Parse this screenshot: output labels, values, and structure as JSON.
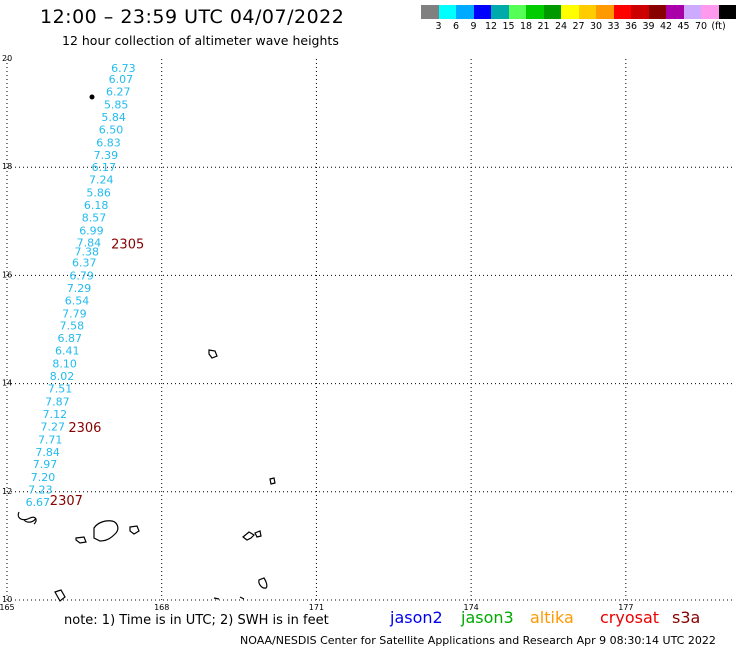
{
  "header": {
    "title": "12:00 – 23:59 UTC 04/07/2022",
    "subtitle": "12 hour collection of altimeter wave heights"
  },
  "color_scale": {
    "colors": [
      "#808080",
      "#00ffff",
      "#00aaff",
      "#0000ff",
      "#00aaaa",
      "#55ff55",
      "#00cc00",
      "#009900",
      "#ffff00",
      "#ffcc00",
      "#ff9900",
      "#ff0000",
      "#cc0000",
      "#880000",
      "#aa00aa",
      "#ccaaff",
      "#ff99ee",
      "#000000"
    ],
    "labels": [
      "3",
      "6",
      "9",
      "12",
      "15",
      "18",
      "21",
      "24",
      "27",
      "30",
      "33",
      "36",
      "39",
      "42",
      "45",
      "70",
      "(ft)"
    ]
  },
  "map": {
    "lon_ticks": [
      "165",
      "168",
      "171",
      "174",
      "177"
    ],
    "lat_ticks": [
      "20",
      "18",
      "16",
      "14",
      "12",
      "10"
    ],
    "wave_color": "#22bbee",
    "track_label_color": "#880000",
    "wave_heights": [
      {
        "v": "6.73",
        "lon": 167.02,
        "lat": 19.83
      },
      {
        "v": "6.07",
        "lon": 166.97,
        "lat": 19.63
      },
      {
        "v": "6.27",
        "lon": 166.92,
        "lat": 19.4
      },
      {
        "v": "5.85",
        "lon": 166.88,
        "lat": 19.16
      },
      {
        "v": "5.84",
        "lon": 166.83,
        "lat": 18.93
      },
      {
        "v": "6.50",
        "lon": 166.78,
        "lat": 18.7
      },
      {
        "v": "6.83",
        "lon": 166.73,
        "lat": 18.46
      },
      {
        "v": "7.39",
        "lon": 166.68,
        "lat": 18.23
      },
      {
        "v": "6.17",
        "lon": 166.64,
        "lat": 18.0
      },
      {
        "v": "7.24",
        "lon": 166.59,
        "lat": 17.77
      },
      {
        "v": "5.86",
        "lon": 166.54,
        "lat": 17.53
      },
      {
        "v": "6.18",
        "lon": 166.49,
        "lat": 17.3
      },
      {
        "v": "8.57",
        "lon": 166.45,
        "lat": 17.07
      },
      {
        "v": "6.99",
        "lon": 166.4,
        "lat": 16.83
      },
      {
        "v": "7.84",
        "lon": 166.35,
        "lat": 16.61
      },
      {
        "v": "7.38",
        "lon": 166.31,
        "lat": 16.44
      },
      {
        "v": "6.37",
        "lon": 166.26,
        "lat": 16.24
      },
      {
        "v": "6.79",
        "lon": 166.21,
        "lat": 16.0
      },
      {
        "v": "7.29",
        "lon": 166.16,
        "lat": 15.77
      },
      {
        "v": "6.54",
        "lon": 166.12,
        "lat": 15.54
      },
      {
        "v": "7.79",
        "lon": 166.07,
        "lat": 15.3
      },
      {
        "v": "7.58",
        "lon": 166.02,
        "lat": 15.07
      },
      {
        "v": "6.87",
        "lon": 165.98,
        "lat": 14.84
      },
      {
        "v": "6.41",
        "lon": 165.93,
        "lat": 14.61
      },
      {
        "v": "8.10",
        "lon": 165.88,
        "lat": 14.37
      },
      {
        "v": "8.02",
        "lon": 165.83,
        "lat": 14.14
      },
      {
        "v": "7.51",
        "lon": 165.79,
        "lat": 13.91
      },
      {
        "v": "7.87",
        "lon": 165.74,
        "lat": 13.67
      },
      {
        "v": "7.12",
        "lon": 165.69,
        "lat": 13.44
      },
      {
        "v": "7.27",
        "lon": 165.65,
        "lat": 13.21
      },
      {
        "v": "7.71",
        "lon": 165.6,
        "lat": 12.97
      },
      {
        "v": "7.84",
        "lon": 165.55,
        "lat": 12.74
      },
      {
        "v": "7.97",
        "lon": 165.5,
        "lat": 12.51
      },
      {
        "v": "7.20",
        "lon": 165.46,
        "lat": 12.27
      },
      {
        "v": "7.23",
        "lon": 165.41,
        "lat": 12.04
      },
      {
        "v": "6.67",
        "lon": 165.36,
        "lat": 11.81
      }
    ],
    "track_labels": [
      {
        "text": "2305",
        "lon": 167.02,
        "lat": 16.57
      },
      {
        "text": "2306",
        "lon": 166.19,
        "lat": 13.18
      },
      {
        "text": "2307",
        "lon": 165.83,
        "lat": 11.83
      }
    ]
  },
  "note": "note:  1) Time is in UTC;  2) SWH is in feet",
  "satellites": [
    {
      "name": "jason2",
      "color": "#0000ee"
    },
    {
      "name": "jason3",
      "color": "#00aa00"
    },
    {
      "name": "altika",
      "color": "#ff9900"
    },
    {
      "name": "cryosat",
      "color": "#ee0000"
    },
    {
      "name": "s3a",
      "color": "#880000"
    }
  ],
  "footer": "NOAA/NESDIS Center for Satellite Applications and Research    Apr  9 08:30:14 UTC 2022"
}
